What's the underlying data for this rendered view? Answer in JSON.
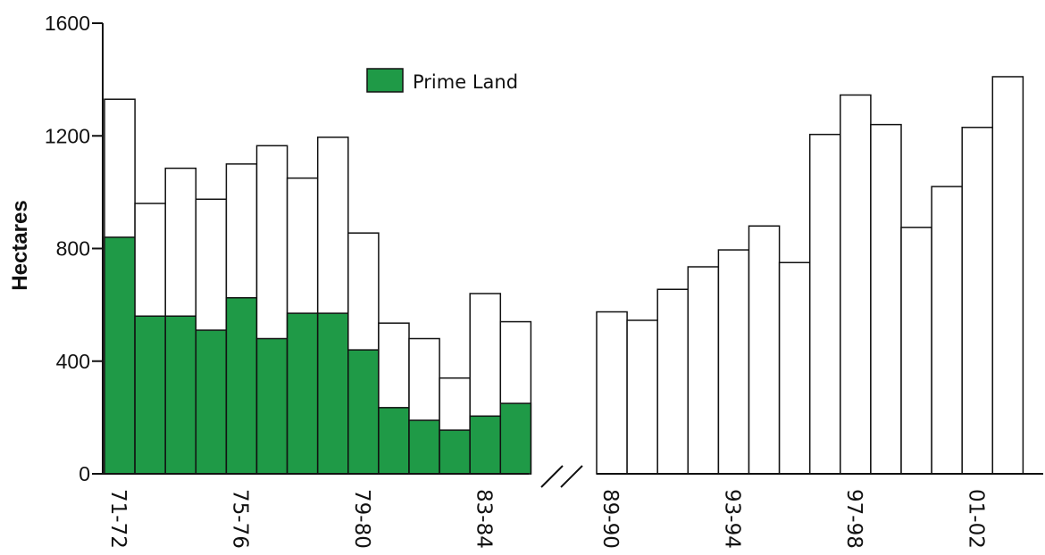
{
  "chart_data": {
    "type": "bar",
    "title": "",
    "ylabel": "Hectares",
    "xlabel": "",
    "ylim": [
      0,
      1600
    ],
    "yticks": [
      0,
      400,
      800,
      1200,
      1600
    ],
    "grid": false,
    "axis_break": "between 84-85 and 89-90",
    "legend": {
      "placement": "top-center",
      "entries": [
        {
          "name": "Prime Land",
          "color": "#1f9a47"
        }
      ]
    },
    "colors": {
      "prime": "#1f9a47",
      "total": "#ffffff",
      "stroke": "#111111"
    },
    "segments": [
      {
        "categories": [
          "71-72",
          "72-73",
          "73-74",
          "74-75",
          "75-76",
          "76-77",
          "77-78",
          "78-79",
          "79-80",
          "80-81",
          "81-82",
          "82-83",
          "83-84",
          "84-85"
        ],
        "labeled": [
          "71-72",
          "75-76",
          "79-80",
          "83-84"
        ],
        "total": [
          1330,
          960,
          1085,
          975,
          1100,
          1165,
          1050,
          1195,
          855,
          535,
          480,
          340,
          640,
          540
        ],
        "prime": [
          840,
          560,
          560,
          510,
          625,
          480,
          570,
          570,
          440,
          235,
          190,
          155,
          205,
          250
        ]
      },
      {
        "categories": [
          "89-90",
          "90-91",
          "91-92",
          "92-93",
          "93-94",
          "94-95",
          "95-96",
          "96-97",
          "97-98",
          "98-99",
          "99-00",
          "00-01",
          "01-02",
          "02-03"
        ],
        "labeled": [
          "89-90",
          "93-94",
          "97-98",
          "01-02"
        ],
        "total": [
          575,
          545,
          655,
          735,
          795,
          880,
          750,
          1205,
          1345,
          1240,
          875,
          1020,
          1230,
          1410
        ],
        "prime": []
      }
    ]
  }
}
